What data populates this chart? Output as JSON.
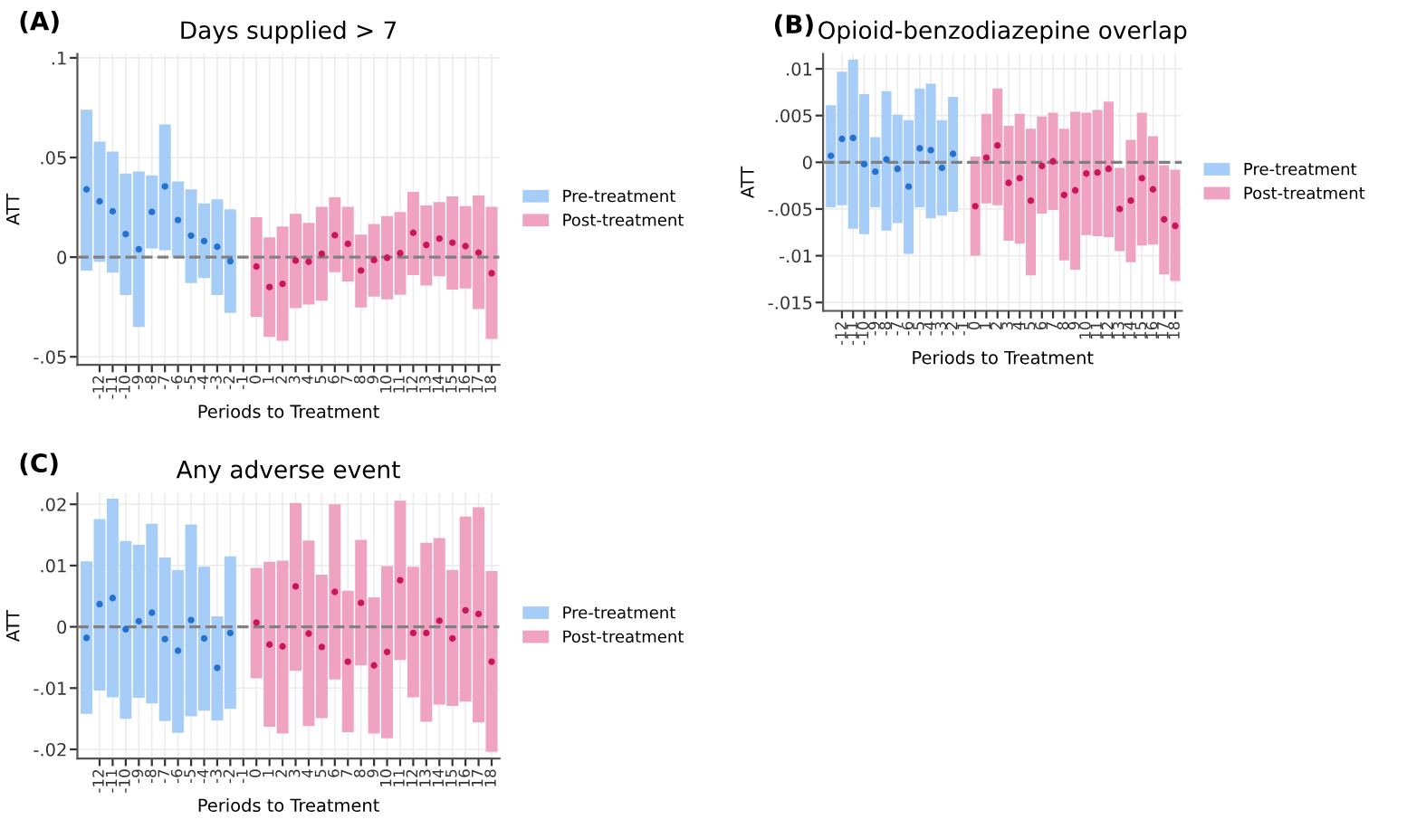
{
  "chart_data": [
    {
      "type": "bar",
      "title": "Days supplied > 7",
      "xlabel": "Periods to Treatment",
      "ylabel": "ATT",
      "annotations": [
        "(A)"
      ],
      "xlim": [
        -13.7,
        18.6
      ],
      "xticks": [
        -12,
        -11,
        -10,
        -9,
        -8,
        -7,
        -6,
        -5,
        -4,
        -3,
        -2,
        -1,
        0,
        1,
        2,
        3,
        4,
        5,
        6,
        7,
        8,
        9,
        10,
        11,
        12,
        13,
        14,
        15,
        16,
        17,
        18
      ],
      "ylim": [
        -0.054,
        0.102
      ],
      "yticks": [
        {
          "value": -0.05,
          "label": "-.05"
        },
        0,
        {
          "value": 0.05,
          "label": ".05"
        },
        {
          "value": 0.1,
          "label": ".1"
        }
      ],
      "grid": true,
      "legend": "right",
      "ref_lines": [
        {
          "axis": "y",
          "value": 0,
          "color": "#808080",
          "line_style": "dashed"
        }
      ],
      "series": [
        {
          "type": "bar",
          "name": "Pre-treatment",
          "color": "#a6cdf7",
          "x": [
            -13,
            -12,
            -11,
            -10,
            -9,
            -8,
            -7,
            -6,
            -5,
            -4,
            -3,
            -2
          ],
          "base": [
            -0.0067,
            -0.0023,
            -0.0078,
            -0.019,
            -0.035,
            0.0044,
            0.0035,
            0,
            -0.013,
            -0.0105,
            -0.019,
            -0.028
          ],
          "values": [
            0.0807,
            0.0603,
            0.0608,
            0.061,
            0.078,
            0.0366,
            0.0631,
            0.038,
            0.047,
            0.0375,
            0.048,
            0.052
          ]
        },
        {
          "type": "bar",
          "name": "Post-treatment",
          "color": "#f0a3c0",
          "x": [
            0,
            1,
            2,
            3,
            4,
            5,
            6,
            7,
            8,
            9,
            10,
            11,
            12,
            13,
            14,
            15,
            16,
            17,
            18
          ],
          "base": [
            -0.03,
            -0.04,
            -0.042,
            -0.0256,
            -0.0238,
            -0.0218,
            -0.0076,
            -0.0122,
            -0.0253,
            -0.0198,
            -0.0212,
            -0.0189,
            -0.009,
            -0.0142,
            -0.0096,
            -0.0163,
            -0.0157,
            -0.026,
            -0.041
          ],
          "values": [
            0.05,
            0.0499,
            0.0574,
            0.0474,
            0.041,
            0.0471,
            0.0376,
            0.0375,
            0.0366,
            0.0364,
            0.0418,
            0.0416,
            0.0418,
            0.0401,
            0.0372,
            0.0468,
            0.0413,
            0.057,
            0.0663
          ]
        },
        {
          "type": "scatter",
          "color": "#2670d0",
          "marker": "circle",
          "x": [
            -13,
            -12,
            -11,
            -10,
            -9,
            -8,
            -7,
            -6,
            -5,
            -4,
            -3,
            -2
          ],
          "values": [
            0.034,
            0.028,
            0.023,
            0.0116,
            0.004,
            0.0227,
            0.0355,
            0.0186,
            0.0108,
            0.0081,
            0.0052,
            -0.002
          ]
        },
        {
          "type": "scatter",
          "color": "#c8155c",
          "marker": "circle",
          "x": [
            0,
            1,
            2,
            3,
            4,
            5,
            6,
            7,
            8,
            9,
            10,
            11,
            12,
            13,
            14,
            15,
            16,
            17,
            18
          ],
          "values": [
            -0.0047,
            -0.015,
            -0.0134,
            -0.0017,
            -0.0023,
            0.0017,
            0.011,
            0.0067,
            -0.0067,
            -0.0015,
            -0.0003,
            0.002,
            0.0122,
            0.0061,
            0.0093,
            0.0073,
            0.0055,
            0.0023,
            -0.0081
          ]
        }
      ]
    },
    {
      "type": "bar",
      "title": "Opioid-benzodiazepine overlap",
      "xlabel": "Periods to Treatment",
      "ylabel": "ATT",
      "annotations": [
        "(B)"
      ],
      "xlim": [
        -13.7,
        18.6
      ],
      "xticks": [
        -12,
        -11,
        -10,
        -9,
        -8,
        -7,
        -6,
        -5,
        -4,
        -3,
        -2,
        -1,
        0,
        1,
        2,
        3,
        4,
        5,
        6,
        7,
        8,
        9,
        10,
        11,
        12,
        13,
        14,
        15,
        16,
        17,
        18
      ],
      "ylim": [
        -0.0159,
        0.0116
      ],
      "yticks": [
        {
          "value": -0.015,
          "label": "-.015"
        },
        {
          "value": -0.01,
          "label": "-.01"
        },
        {
          "value": -0.005,
          "label": "-.005"
        },
        0,
        {
          "value": 0.005,
          "label": ".005"
        },
        {
          "value": 0.01,
          "label": ".01"
        }
      ],
      "grid": true,
      "legend": "right",
      "ref_lines": [
        {
          "axis": "y",
          "value": 0,
          "color": "#808080",
          "line_style": "dashed"
        }
      ],
      "series": [
        {
          "type": "bar",
          "name": "Pre-treatment",
          "color": "#a6cdf7",
          "x": [
            -13,
            -12,
            -11,
            -10,
            -9,
            -8,
            -7,
            -6,
            -5,
            -4,
            -3,
            -2
          ],
          "base": [
            -0.0048,
            -0.0046,
            -0.0071,
            -0.0077,
            -0.0048,
            -0.0073,
            -0.0065,
            -0.0098,
            -0.0048,
            -0.006,
            -0.0057,
            -0.0053
          ],
          "values": [
            0.0109,
            0.0143,
            0.0181,
            0.015,
            0.0075,
            0.0149,
            0.0116,
            0.0143,
            0.0127,
            0.0144,
            0.0102,
            0.0123
          ]
        },
        {
          "type": "bar",
          "name": "Post-treatment",
          "color": "#f0a3c0",
          "x": [
            0,
            1,
            2,
            3,
            4,
            5,
            6,
            7,
            8,
            9,
            10,
            11,
            12,
            13,
            14,
            15,
            16,
            17,
            18
          ],
          "base": [
            -0.01,
            -0.0044,
            -0.0046,
            -0.0084,
            -0.0087,
            -0.0121,
            -0.0055,
            -0.0051,
            -0.0105,
            -0.0115,
            -0.0078,
            -0.0079,
            -0.008,
            -0.0095,
            -0.0107,
            -0.0089,
            -0.0088,
            -0.012,
            -0.0127
          ],
          "values": [
            0.0106,
            0.0096,
            0.0125,
            0.0123,
            0.0139,
            0.0157,
            0.0104,
            0.0104,
            0.0141,
            0.0169,
            0.0131,
            0.0135,
            0.0145,
            0.0089,
            0.0131,
            0.0142,
            0.0116,
            0.0117,
            0.0119
          ]
        },
        {
          "type": "scatter",
          "color": "#2670d0",
          "marker": "circle",
          "x": [
            -13,
            -12,
            -11,
            -10,
            -9,
            -8,
            -7,
            -6,
            -5,
            -4,
            -3,
            -2
          ],
          "values": [
            0.0007,
            0.0025,
            0.0026,
            -0.0002,
            -0.001,
            0.0003,
            -0.0007,
            -0.0026,
            0.0015,
            0.0013,
            -0.0006,
            0.0009
          ]
        },
        {
          "type": "scatter",
          "color": "#c8155c",
          "marker": "circle",
          "x": [
            0,
            1,
            2,
            3,
            4,
            5,
            6,
            7,
            8,
            9,
            10,
            11,
            12,
            13,
            14,
            15,
            16,
            17,
            18
          ],
          "values": [
            -0.0047,
            0.0005,
            0.0018,
            -0.0022,
            -0.0017,
            -0.0041,
            -0.0004,
            0.0001,
            -0.0035,
            -0.003,
            -0.0012,
            -0.0011,
            -0.0007,
            -0.005,
            -0.0041,
            -0.0017,
            -0.0029,
            -0.0061,
            -0.0068
          ]
        }
      ]
    },
    {
      "type": "bar",
      "title": "Any adverse event",
      "xlabel": "Periods to Treatment",
      "ylabel": "ATT",
      "annotations": [
        "(C)"
      ],
      "xlim": [
        -13.7,
        18.6
      ],
      "xticks": [
        -12,
        -11,
        -10,
        -9,
        -8,
        -7,
        -6,
        -5,
        -4,
        -3,
        -2,
        -1,
        0,
        1,
        2,
        3,
        4,
        5,
        6,
        7,
        8,
        9,
        10,
        11,
        12,
        13,
        14,
        15,
        16,
        17,
        18
      ],
      "ylim": [
        -0.0215,
        0.0218
      ],
      "yticks": [
        {
          "value": -0.02,
          "label": "-.02"
        },
        {
          "value": -0.01,
          "label": "-.01"
        },
        0,
        {
          "value": 0.01,
          "label": ".01"
        },
        {
          "value": 0.02,
          "label": ".02"
        }
      ],
      "grid": true,
      "legend": "right",
      "ref_lines": [
        {
          "axis": "y",
          "value": 0,
          "color": "#808080",
          "line_style": "dashed"
        }
      ],
      "series": [
        {
          "type": "bar",
          "name": "Pre-treatment",
          "color": "#a6cdf7",
          "x": [
            -13,
            -12,
            -11,
            -10,
            -9,
            -8,
            -7,
            -6,
            -5,
            -4,
            -3,
            -2
          ],
          "base": [
            -0.0142,
            -0.0104,
            -0.0115,
            -0.015,
            -0.0116,
            -0.0125,
            -0.0154,
            -0.0173,
            -0.0146,
            -0.0137,
            -0.0153,
            -0.0134
          ],
          "values": [
            0.0249,
            0.028,
            0.0324,
            0.029,
            0.025,
            0.0293,
            0.0267,
            0.0266,
            0.0313,
            0.0235,
            0.017,
            0.0249
          ]
        },
        {
          "type": "bar",
          "name": "Post-treatment",
          "color": "#f0a3c0",
          "x": [
            0,
            1,
            2,
            3,
            4,
            5,
            6,
            7,
            8,
            9,
            10,
            11,
            12,
            13,
            14,
            15,
            16,
            17,
            18
          ],
          "base": [
            -0.0084,
            -0.0163,
            -0.0174,
            -0.0072,
            -0.0162,
            -0.0149,
            -0.0086,
            -0.0172,
            -0.0063,
            -0.0174,
            -0.0182,
            -0.0054,
            -0.0115,
            -0.0155,
            -0.0127,
            -0.0129,
            -0.0122,
            -0.0156,
            -0.0204
          ],
          "values": [
            0.018,
            0.0269,
            0.0282,
            0.0274,
            0.0303,
            0.0234,
            0.0286,
            0.0231,
            0.0205,
            0.0222,
            0.0281,
            0.026,
            0.0213,
            0.0292,
            0.0272,
            0.0222,
            0.0302,
            0.0351,
            0.0295
          ]
        },
        {
          "type": "scatter",
          "color": "#2670d0",
          "marker": "circle",
          "x": [
            -13,
            -12,
            -11,
            -10,
            -9,
            -8,
            -7,
            -6,
            -5,
            -4,
            -3,
            -2
          ],
          "values": [
            -0.0018,
            0.0037,
            0.0047,
            -0.0004,
            0.0009,
            0.0023,
            -0.002,
            -0.0039,
            0.0011,
            -0.0019,
            -0.0067,
            -0.001
          ]
        },
        {
          "type": "scatter",
          "color": "#c8155c",
          "marker": "circle",
          "x": [
            0,
            1,
            2,
            3,
            4,
            5,
            6,
            7,
            8,
            9,
            10,
            11,
            12,
            13,
            14,
            15,
            16,
            17,
            18
          ],
          "values": [
            0.0007,
            -0.0029,
            -0.0032,
            0.0066,
            -0.0011,
            -0.0033,
            0.0057,
            -0.0057,
            0.0039,
            -0.0063,
            -0.0041,
            0.0076,
            -0.001,
            -0.001,
            0.001,
            -0.0019,
            0.0027,
            0.0021,
            -0.0057
          ]
        }
      ]
    }
  ]
}
